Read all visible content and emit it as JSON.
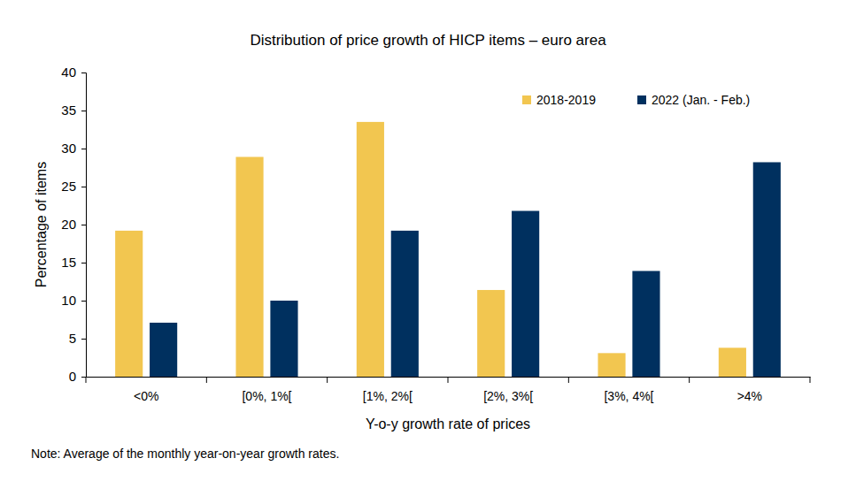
{
  "chart_data": {
    "type": "bar",
    "title": "Distribution of price growth of HICP items – euro area",
    "x_label": "Y-o-y growth rate of prices",
    "y_label": "Percentage of items",
    "annotation": "Note: Average of the monthly year-on-year growth rates.",
    "categories": [
      "<0%",
      "[0%, 1%[",
      "[1%, 2%[",
      "[2%, 3%[",
      "[3%, 4%[",
      ">4%"
    ],
    "series": [
      {
        "name": "2018-2019",
        "color": "#f2c650",
        "values": [
          19.2,
          28.9,
          33.5,
          11.4,
          3.1,
          3.8
        ]
      },
      {
        "name": "2022 (Jan. - Feb.)",
        "color": "#00305f",
        "values": [
          7.1,
          10.0,
          19.2,
          21.8,
          13.9,
          28.2
        ]
      }
    ],
    "ylim": [
      0,
      40
    ],
    "yticks": [
      0,
      5,
      10,
      15,
      20,
      25,
      30,
      35,
      40
    ],
    "grid": false,
    "legend": "upper right"
  }
}
